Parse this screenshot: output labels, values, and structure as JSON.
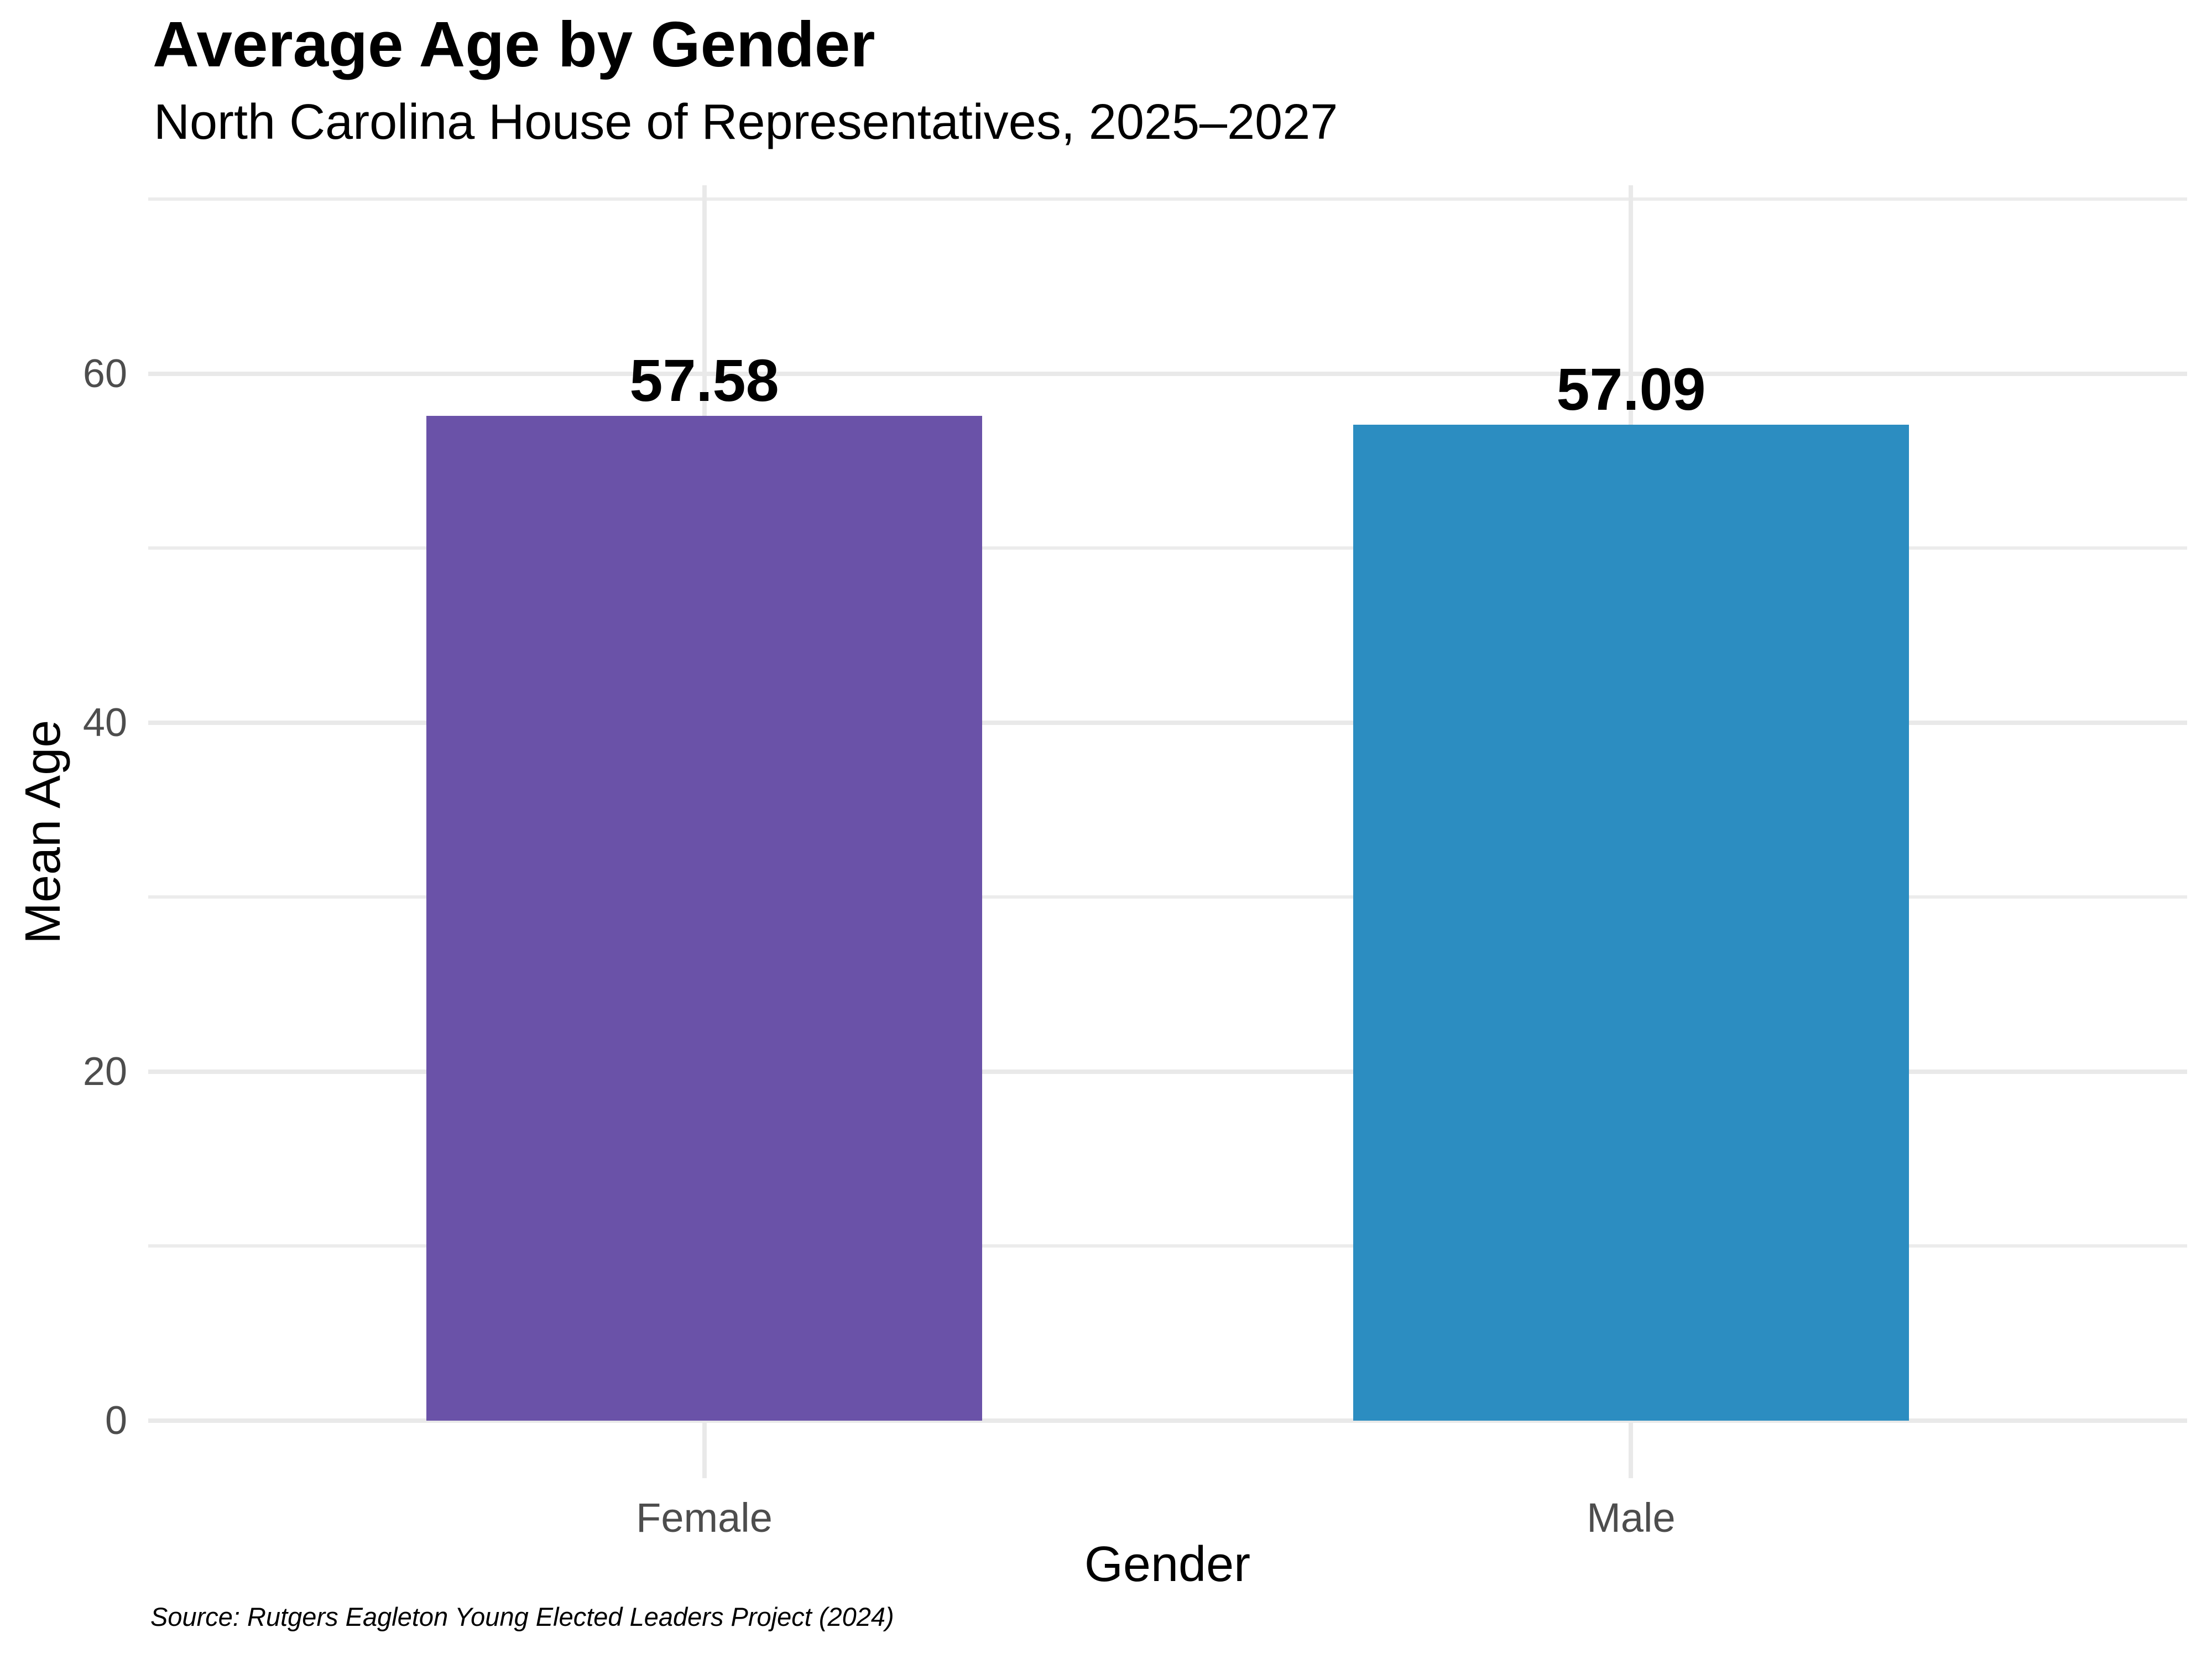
{
  "chart_data": {
    "type": "bar",
    "title": "Average Age by Gender",
    "subtitle": "North Carolina House of Representatives, 2025–2027",
    "xlabel": "Gender",
    "ylabel": "Mean Age",
    "categories": [
      "Female",
      "Male"
    ],
    "values": [
      57.58,
      57.09
    ],
    "bar_labels": [
      "57.58",
      "57.09"
    ],
    "bar_colors": [
      "#6A52A8",
      "#2C8DC1"
    ],
    "yticks": [
      0,
      20,
      40,
      60
    ],
    "yticks_minor": [
      10,
      30,
      50,
      70
    ],
    "ylim": [
      -3.3,
      70.8
    ],
    "grid": "horizontal major and minor gridlines plus vertical category gridlines, light gray on white",
    "legend": "none",
    "source": "Source: Rutgers Eagleton Young Elected Leaders Project (2024)"
  },
  "colors": {
    "background": "#FFFFFF",
    "grid_major": "#E9E9E9",
    "grid_minor": "#ECECEC",
    "tick_label": "#4D4D4D",
    "text": "#000000",
    "female_bar": "#6A52A8",
    "male_bar": "#2C8DC1"
  }
}
